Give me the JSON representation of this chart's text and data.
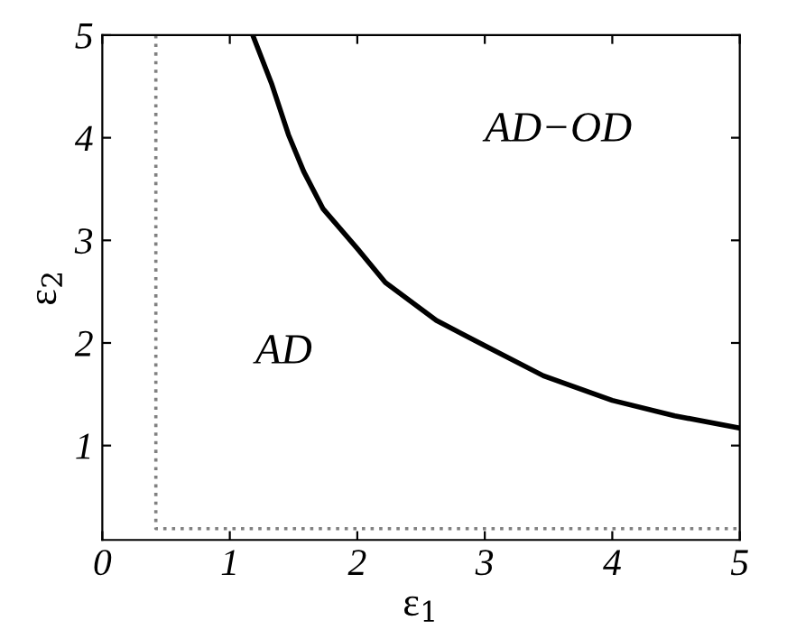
{
  "chart_data": {
    "type": "line",
    "xlabel": "ε$_{1}$",
    "ylabel": "ε$_{2}$",
    "annotations": [
      "AD",
      "AD−OD"
    ],
    "series": [
      {
        "color": "#000000",
        "line_style": "solid",
        "x": [
          1.18,
          1.33,
          1.46,
          1.58,
          1.73,
          2.0,
          2.22,
          2.62,
          2.99,
          3.46,
          4.0,
          4.49,
          5.0
        ],
        "values": [
          5.0,
          4.52,
          4.03,
          3.67,
          3.31,
          2.92,
          2.59,
          2.22,
          1.98,
          1.68,
          1.44,
          1.29,
          1.17
        ]
      },
      {
        "color": "#808080",
        "line_style": "dotted",
        "x": [
          0.42,
          0.42,
          5.0
        ],
        "values": [
          5.0,
          0.19,
          0.19
        ]
      }
    ],
    "xlim": [
      0,
      5
    ],
    "ylim": [
      0.08,
      5
    ],
    "xticks": [
      0,
      1,
      2,
      3,
      4,
      5
    ],
    "yticks": [
      1,
      2,
      3,
      4,
      5
    ],
    "grid": false,
    "legend": false
  }
}
